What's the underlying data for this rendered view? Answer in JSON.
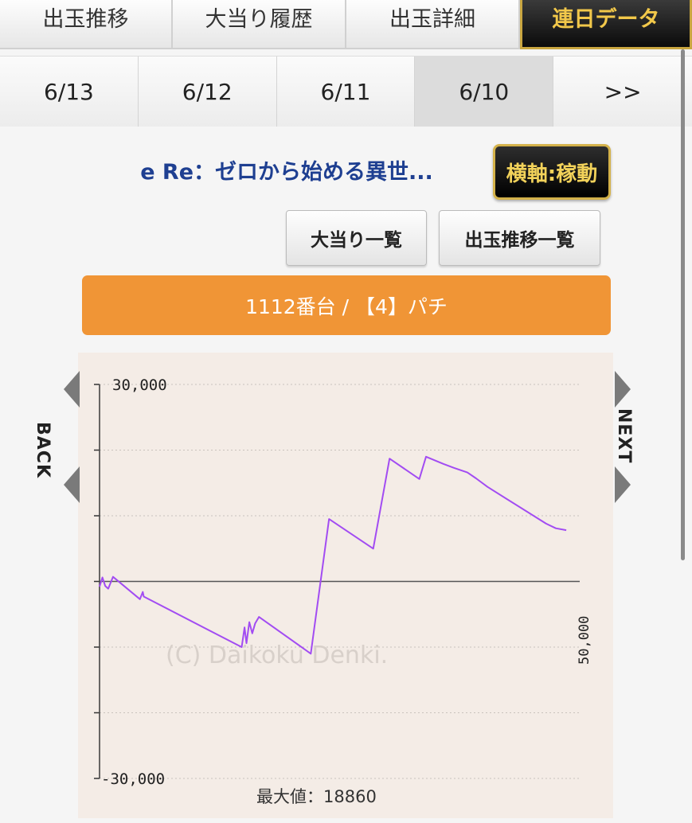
{
  "tabs": [
    {
      "label": "出玉推移",
      "active": false
    },
    {
      "label": "大当り履歴",
      "active": false
    },
    {
      "label": "出玉詳細",
      "active": false
    },
    {
      "label": "連日データ",
      "active": true
    }
  ],
  "dates": [
    {
      "label": "6/13",
      "selected": false
    },
    {
      "label": "6/12",
      "selected": false
    },
    {
      "label": "6/11",
      "selected": false
    },
    {
      "label": "6/10",
      "selected": true
    },
    {
      "label": ">>",
      "selected": false
    }
  ],
  "machine_title": "e Re：ゼロから始める異世...",
  "axis_toggle_label": "横軸:稼動",
  "buttons": {
    "jackpot_list": "大当り一覧",
    "payout_list": "出玉推移一覧"
  },
  "machine_bar": "1112番台 / 【4】パチ",
  "nav": {
    "back_label": "BACK",
    "next_label": "NEXT"
  },
  "colors": {
    "accent_orange": "#f09536",
    "title_blue": "#1e3f91",
    "line_purple": "#a24cf2",
    "active_tab_text": "#f2c84a"
  },
  "chart_data": {
    "type": "line",
    "title": "",
    "watermark": "(C) Daikoku Denki.",
    "ylim": [
      -30000,
      30000
    ],
    "y_ticks": [
      30000,
      20000,
      10000,
      0,
      -10000,
      -20000,
      -30000
    ],
    "y_tick_labels": {
      "top": "30,000",
      "bottom": "-30,000"
    },
    "x_max_label": "50,000",
    "xlim": [
      0,
      50000
    ],
    "max_value_label": "最大値：18860",
    "grid": true,
    "series": [
      {
        "x": [
          0,
          300,
          600,
          900,
          1400,
          4200,
          4500,
          4600,
          14800,
          15100,
          15300,
          15600,
          15900,
          16200,
          16600,
          22000,
          23900,
          28500,
          30200,
          33300,
          34000,
          35800,
          36900,
          38300,
          39200,
          40400,
          46500,
          47500,
          48600
        ],
        "y": [
          -800,
          600,
          -700,
          -1100,
          700,
          -2700,
          -1600,
          -2300,
          -10000,
          -7000,
          -9400,
          -6200,
          -7900,
          -6400,
          -5400,
          -11000,
          9500,
          5000,
          18700,
          15600,
          19000,
          17900,
          17300,
          16600,
          15700,
          14400,
          8800,
          8100,
          7800
        ]
      }
    ]
  }
}
